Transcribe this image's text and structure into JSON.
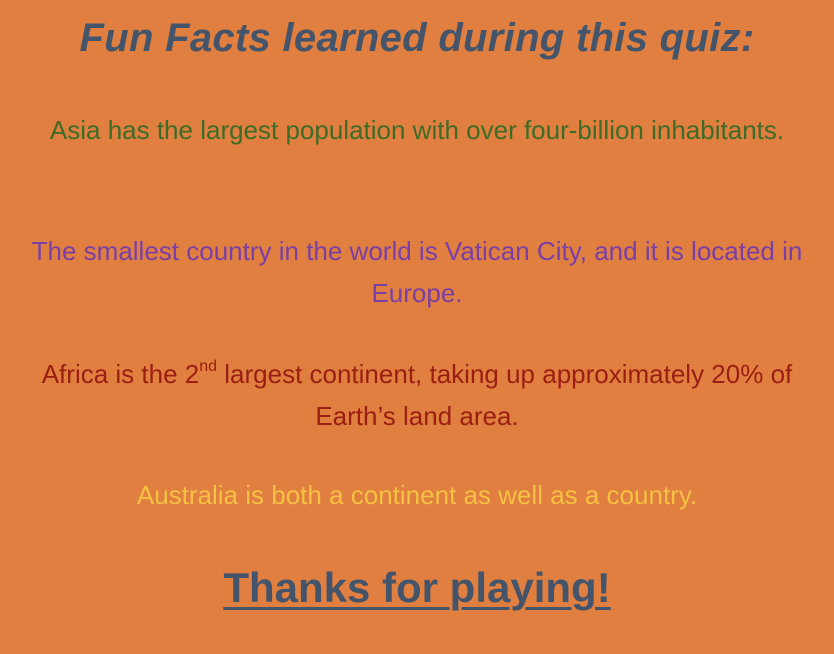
{
  "title": "Fun Facts learned during this quiz:",
  "facts": [
    {
      "text": "Asia has the largest population with over four-billion inhabitants.",
      "color": "#3E6B26"
    },
    {
      "text": "The smallest country in the world is Vatican City, and it is located in Europe.",
      "color": "#7A3FA6"
    },
    {
      "before": "Africa is the 2",
      "sup": "nd",
      "after": " largest continent, taking up approximately 20% of Earth’s land area.",
      "color": "#9A1E12"
    },
    {
      "text": "Australia is both a continent as well as a country.",
      "color": "#F6C143"
    }
  ],
  "closing": "Thanks for playing!",
  "colors": {
    "background": "#E07F40",
    "heading": "#44546A"
  }
}
